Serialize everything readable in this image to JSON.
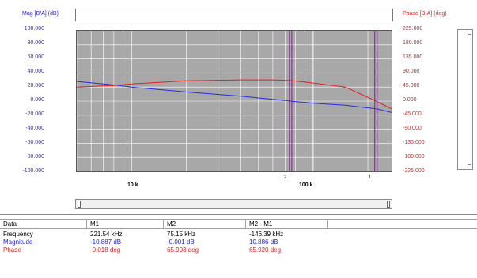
{
  "plot": {
    "mag_axis_title": "Mag [B/A] (dB)",
    "phase_axis_title": "Phase [B-A] (deg)",
    "mag_ticks": [
      "100.000",
      "80.000",
      "60.000",
      "40.000",
      "20.000",
      "0.000",
      "-20.000",
      "-40.000",
      "-60.000",
      "-80.000",
      "-100.000"
    ],
    "phase_ticks": [
      "225.000",
      "180.000",
      "135.000",
      "90.000",
      "45.000",
      "0.000",
      "-45.000",
      "-90.000",
      "-135.000",
      "-180.000",
      "-225.000"
    ],
    "x_tick_labels": [
      "10 k",
      "100 k"
    ],
    "cursor_labels": [
      "2",
      "1"
    ],
    "colors": {
      "magnitude": "#2a2ae0",
      "phase": "#e02020",
      "plot_bg": "#a8a8a8",
      "grid": "#ffffff",
      "cursor": "#7a1f8a"
    }
  },
  "chart_data": {
    "type": "line",
    "xscale": "log",
    "xlim": [
      5000,
      270000
    ],
    "x_tick_labels": [
      "10 k",
      "100 k"
    ],
    "y_left": {
      "label": "Mag [B/A] (dB)",
      "ylim": [
        -100,
        100
      ]
    },
    "y_right": {
      "label": "Phase [B-A] (deg)",
      "ylim": [
        -225,
        225
      ]
    },
    "grid": true,
    "series": [
      {
        "name": "Magnitude",
        "axis": "left",
        "x": [
          5000,
          8000,
          10000,
          20000,
          40000,
          75150,
          100000,
          150000,
          221540,
          270000
        ],
        "y": [
          28,
          23,
          20,
          13,
          7,
          0,
          -3,
          -6,
          -11,
          -16
        ]
      },
      {
        "name": "Phase",
        "axis": "right",
        "x": [
          5000,
          8000,
          10000,
          20000,
          40000,
          60000,
          75150,
          100000,
          150000,
          221540,
          270000
        ],
        "y": [
          45,
          50,
          55,
          65,
          68,
          68,
          65.9,
          58,
          45,
          0,
          -25
        ]
      }
    ],
    "cursors": [
      {
        "label": "2",
        "x": 75150
      },
      {
        "label": "1",
        "x": 221540
      }
    ]
  },
  "table": {
    "headers": [
      "Data",
      "M1",
      "M2",
      "M2 - M1"
    ],
    "rows": [
      {
        "label": "Frequency",
        "m1": "221.54 kHz",
        "m2": "75.15 kHz",
        "diff": "-146.39 kHz"
      },
      {
        "label": "Magnitude",
        "m1": "-10.887 dB",
        "m2": "-0.001 dB",
        "diff": "10.886 dB"
      },
      {
        "label": "Phase",
        "m1": "-0.018 deg",
        "m2": "65.903 deg",
        "diff": "65.920 deg"
      }
    ]
  }
}
